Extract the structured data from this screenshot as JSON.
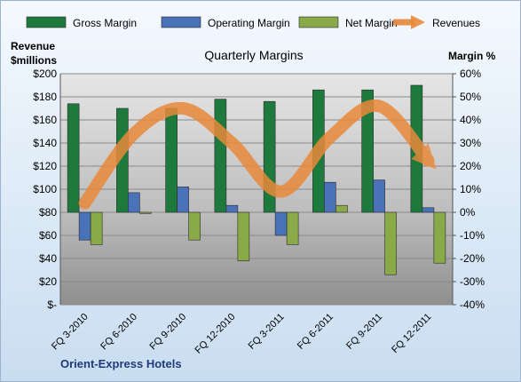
{
  "chart_data": {
    "type": "bar",
    "title": "Quarterly Margins",
    "ylabel_left": [
      "Revenue",
      "$millions"
    ],
    "ylabel_right": "Margin %",
    "footer": "Orient-Express Hotels",
    "categories": [
      "FQ 3-2010",
      "FQ 6-2010",
      "FQ 9-2010",
      "FQ 12-2010",
      "FQ 3-2011",
      "FQ 6-2011",
      "FQ 9-2011",
      "FQ 12-2011"
    ],
    "y_left": {
      "min": 0,
      "max": 200,
      "step": 20,
      "tick_labels": [
        "$-",
        "$20",
        "$40",
        "$60",
        "$80",
        "$100",
        "$120",
        "$140",
        "$160",
        "$180",
        "$200"
      ]
    },
    "y_right": {
      "min": -40,
      "max": 60,
      "step": 10,
      "tick_labels": [
        "-40%",
        "-30%",
        "-20%",
        "-10%",
        "0%",
        "10%",
        "20%",
        "30%",
        "40%",
        "50%",
        "60%"
      ]
    },
    "series": [
      {
        "name": "Gross Margin",
        "axis": "right",
        "kind": "bar",
        "color": "#1e7a3c",
        "values": [
          47,
          45,
          45,
          49,
          48,
          53,
          53,
          55
        ]
      },
      {
        "name": "Operating Margin",
        "axis": "right",
        "kind": "bar",
        "color": "#4a72b8",
        "values": [
          -12,
          8.5,
          11,
          3,
          -10,
          13,
          14,
          2
        ]
      },
      {
        "name": "Net Margin",
        "axis": "right",
        "kind": "bar",
        "color": "#8aaa4a",
        "values": [
          -14,
          -0.5,
          -12,
          -21,
          -14,
          3,
          -27,
          -22
        ]
      },
      {
        "name": "Revenues",
        "axis": "left",
        "kind": "line",
        "color": "#e8893a",
        "values": [
          88,
          148,
          170,
          140,
          98,
          145,
          172,
          125
        ]
      }
    ],
    "legend_position": "top"
  }
}
